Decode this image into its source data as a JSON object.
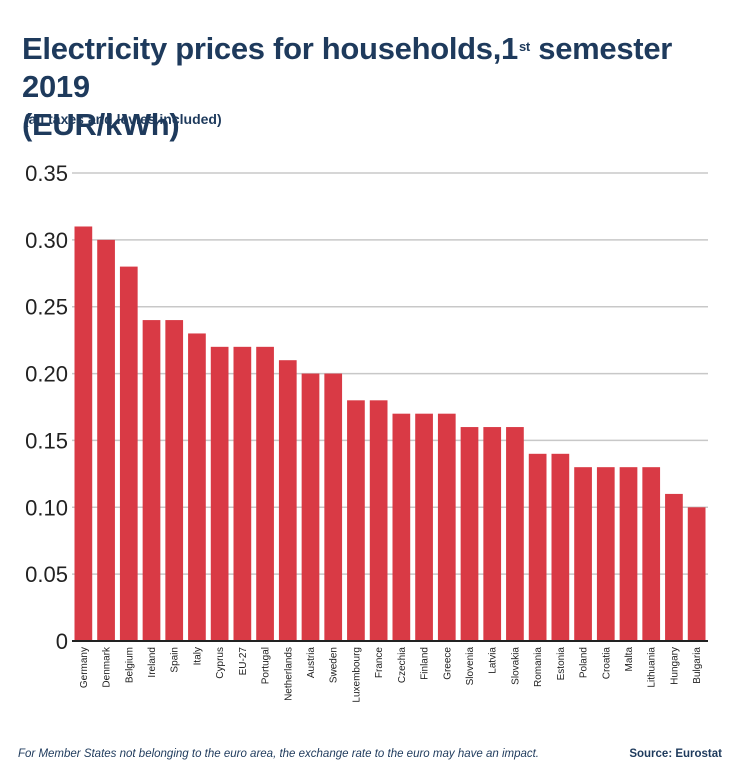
{
  "header": {
    "title_main": "Electricity prices for households,1",
    "title_sup": "st",
    "title_tail": " semester 2019",
    "title_line2": "(EUR/kWh)",
    "subtitle": "(all taxes and levies included)"
  },
  "footer": {
    "note": "For Member States not belonging to the euro area, the exchange rate to the euro may have an impact.",
    "source": "Source: Eurostat"
  },
  "colors": {
    "bar": "#d93a45",
    "grid": "#c8c8c8",
    "axis": "#222222",
    "text": "#1e3a5c"
  },
  "chart_data": {
    "type": "bar",
    "title": "Electricity prices for households,1st semester 2019 (EUR/kWh)",
    "subtitle": "(all taxes and levies included)",
    "xlabel": "",
    "ylabel": "",
    "ylim": [
      0,
      0.35
    ],
    "yticks": [
      0,
      0.05,
      0.1,
      0.15,
      0.2,
      0.25,
      0.3,
      0.35
    ],
    "ytick_labels": [
      "0",
      "0.05",
      "0.10",
      "0.15",
      "0.20",
      "0.25",
      "0.30",
      "0.35"
    ],
    "grid": true,
    "categories": [
      "Germany",
      "Denmark",
      "Belgium",
      "Ireland",
      "Spain",
      "Italy",
      "Cyprus",
      "EU-27",
      "Portugal",
      "Netherlands",
      "Austria",
      "Sweden",
      "Luxembourg",
      "France",
      "Czechia",
      "Finland",
      "Greece",
      "Slovenia",
      "Latvia",
      "Slovakia",
      "Romania",
      "Estonia",
      "Poland",
      "Croatia",
      "Malta",
      "Lithuania",
      "Hungary",
      "Bulgaria"
    ],
    "values": [
      0.31,
      0.3,
      0.28,
      0.24,
      0.24,
      0.23,
      0.22,
      0.22,
      0.22,
      0.21,
      0.2,
      0.2,
      0.18,
      0.18,
      0.17,
      0.17,
      0.17,
      0.16,
      0.16,
      0.16,
      0.14,
      0.14,
      0.13,
      0.13,
      0.13,
      0.13,
      0.11,
      0.1
    ]
  }
}
